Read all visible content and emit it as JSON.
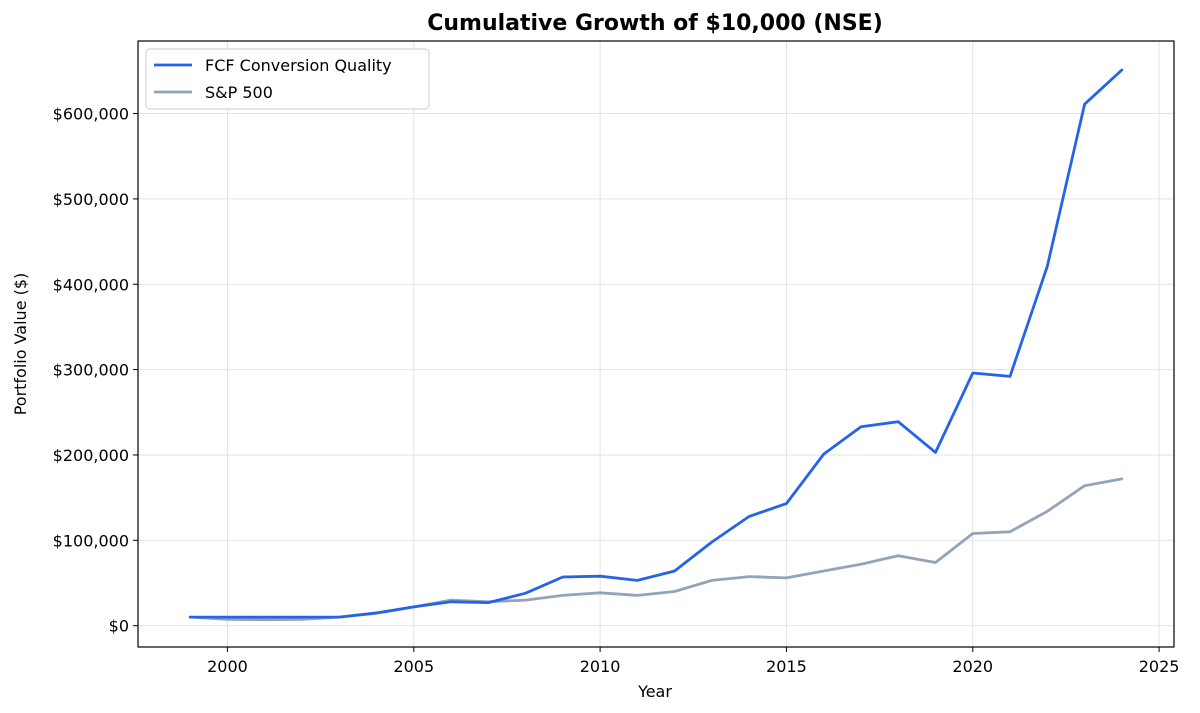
{
  "chart_data": {
    "type": "line",
    "title": "Cumulative Growth of $10,000 (NSE)",
    "xlabel": "Year",
    "ylabel": "Portfolio Value ($)",
    "xlim": [
      1997.6,
      2025.4
    ],
    "ylim": [
      -25000,
      685000
    ],
    "x_ticks": [
      2000,
      2005,
      2010,
      2015,
      2020,
      2025
    ],
    "x_tick_labels": [
      "2000",
      "2005",
      "2010",
      "2015",
      "2020",
      "2025"
    ],
    "y_ticks": [
      0,
      100000,
      200000,
      300000,
      400000,
      500000,
      600000
    ],
    "y_tick_labels": [
      "$0",
      "$100,000",
      "$200,000",
      "$300,000",
      "$400,000",
      "$500,000",
      "$600,000"
    ],
    "grid": true,
    "legend_position": "top-left",
    "x": [
      1999,
      2000,
      2001,
      2002,
      2003,
      2004,
      2005,
      2006,
      2007,
      2008,
      2009,
      2010,
      2011,
      2012,
      2013,
      2014,
      2015,
      2016,
      2017,
      2018,
      2019,
      2020,
      2021,
      2022,
      2023,
      2024
    ],
    "series": [
      {
        "name": "FCF Conversion Quality",
        "color": "#2563eb",
        "values": [
          10000,
          10000,
          10000,
          10000,
          10000,
          15000,
          22000,
          28000,
          27000,
          38000,
          57000,
          58000,
          53000,
          64000,
          98000,
          128000,
          143000,
          201000,
          233000,
          239000,
          203000,
          296000,
          292000,
          421000,
          611000,
          651000
        ]
      },
      {
        "name": "S&P 500",
        "color": "#94a3b8",
        "values": [
          10000,
          7500,
          7000,
          7500,
          10000,
          14500,
          22000,
          30000,
          28000,
          30000,
          35500,
          38500,
          35500,
          40000,
          53000,
          57500,
          56000,
          64000,
          72000,
          82000,
          74000,
          108000,
          110000,
          134000,
          164000,
          172000
        ]
      }
    ]
  }
}
